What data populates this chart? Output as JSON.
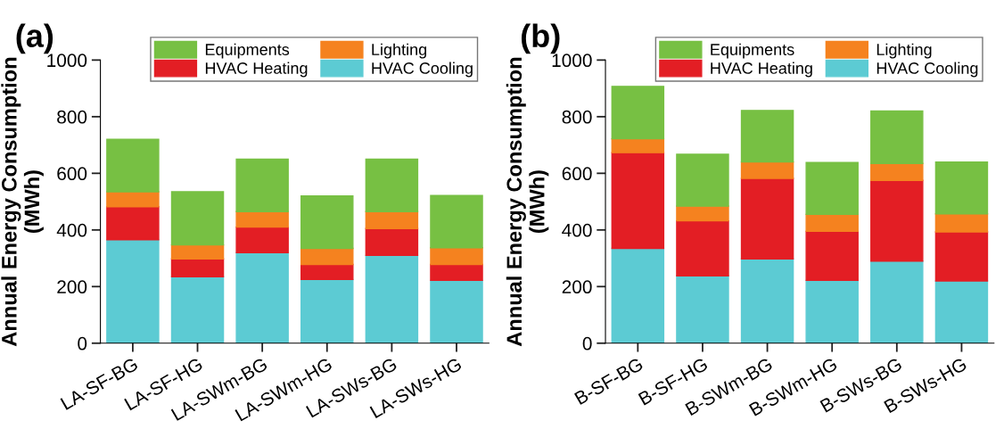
{
  "chart_data": [
    {
      "type": "bar",
      "title": "(a)",
      "ylabel": "Annual Energy Consumption\n(MWh)",
      "stacked": true,
      "legend": "top",
      "grid": false,
      "categories": [
        "LA-SF-BG",
        "LA-SF-HG",
        "LA-SWm-BG",
        "LA-SWm-HG",
        "LA-SWs-BG",
        "LA-SWs-HG"
      ],
      "ylim": [
        0,
        1000
      ],
      "yticks": [
        0,
        200,
        400,
        600,
        800,
        1000
      ],
      "series": [
        {
          "name": "HVAC Cooling",
          "color": "#5ccbd3",
          "values": [
            365,
            235,
            320,
            225,
            310,
            222
          ]
        },
        {
          "name": "HVAC Heating",
          "color": "#e31e24",
          "values": [
            117,
            63,
            90,
            53,
            95,
            56
          ]
        },
        {
          "name": "Lighting",
          "color": "#f5821f",
          "values": [
            53,
            49,
            55,
            57,
            60,
            59
          ]
        },
        {
          "name": "Equipments",
          "color": "#77c043",
          "values": [
            185,
            188,
            185,
            185,
            185,
            185
          ]
        }
      ]
    },
    {
      "type": "bar",
      "title": "(b)",
      "ylabel": "Annual Energy Consumption\n(MWh)",
      "stacked": true,
      "legend": "top",
      "grid": false,
      "categories": [
        "B-SF-BG",
        "B-SF-HG",
        "B-SWm-BG",
        "B-SWm-HG",
        "B-SWs-BG",
        "B-SWs-HG"
      ],
      "ylim": [
        0,
        1000
      ],
      "yticks": [
        0,
        200,
        400,
        600,
        800,
        1000
      ],
      "series": [
        {
          "name": "HVAC Cooling",
          "color": "#5ccbd3",
          "values": [
            335,
            238,
            298,
            222,
            290,
            220
          ]
        },
        {
          "name": "HVAC Heating",
          "color": "#e31e24",
          "values": [
            338,
            194,
            284,
            173,
            285,
            173
          ]
        },
        {
          "name": "Lighting",
          "color": "#f5821f",
          "values": [
            49,
            52,
            58,
            60,
            60,
            64
          ]
        },
        {
          "name": "Equipments",
          "color": "#77c043",
          "values": [
            185,
            183,
            182,
            183,
            185,
            183
          ]
        }
      ]
    }
  ]
}
